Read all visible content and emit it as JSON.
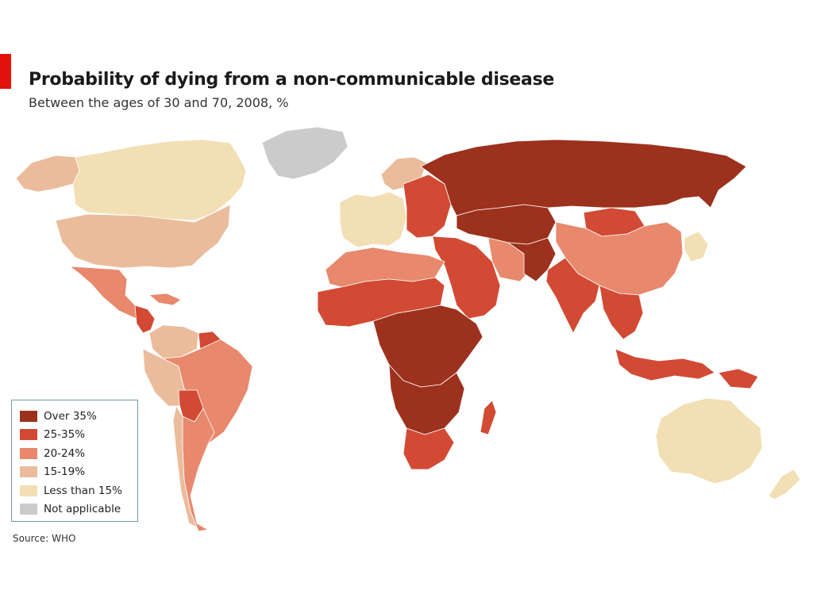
{
  "title": "Probability of dying from a non-communicable disease",
  "subtitle": "Between the ages of 30 and 70, 2008, %",
  "source": "Source: WHO",
  "accent_color": "#e3120b",
  "legend": [
    {
      "label": "Over 35%",
      "color": "#9c311d"
    },
    {
      "label": "25-35%",
      "color": "#d24a34"
    },
    {
      "label": "20-24%",
      "color": "#e8886c"
    },
    {
      "label": "15-19%",
      "color": "#ebbc9c"
    },
    {
      "label": "Less than 15%",
      "color": "#f2dfb4"
    },
    {
      "label": "Not applicable",
      "color": "#cbcbcb"
    }
  ],
  "regions": [
    {
      "name": "Canada",
      "category": "Less than 15%"
    },
    {
      "name": "Alaska",
      "category": "15-19%"
    },
    {
      "name": "Greenland",
      "category": "Not applicable"
    },
    {
      "name": "United States",
      "category": "15-19%"
    },
    {
      "name": "Mexico",
      "category": "20-24%"
    },
    {
      "name": "Central America",
      "category": "25-35%"
    },
    {
      "name": "Caribbean",
      "category": "20-24%"
    },
    {
      "name": "Colombia & Venezuela",
      "category": "15-19%"
    },
    {
      "name": "Guianas",
      "category": "25-35%"
    },
    {
      "name": "Brazil",
      "category": "20-24%"
    },
    {
      "name": "Peru & Ecuador",
      "category": "15-19%"
    },
    {
      "name": "Bolivia",
      "category": "25-35%"
    },
    {
      "name": "Southern Cone",
      "category": "20-24%"
    },
    {
      "name": "Chile",
      "category": "15-19%"
    },
    {
      "name": "Western Europe",
      "category": "Less than 15%"
    },
    {
      "name": "Nordic countries",
      "category": "15-19%"
    },
    {
      "name": "Eastern Europe",
      "category": "25-35%"
    },
    {
      "name": "Russia",
      "category": "Over 35%"
    },
    {
      "name": "Central Asia",
      "category": "Over 35%"
    },
    {
      "name": "Mongolia",
      "category": "25-35%"
    },
    {
      "name": "China",
      "category": "20-24%"
    },
    {
      "name": "Japan & Korea",
      "category": "Less than 15%"
    },
    {
      "name": "South Asia",
      "category": "25-35%"
    },
    {
      "name": "Afghanistan & Pakistan",
      "category": "Over 35%"
    },
    {
      "name": "Middle East",
      "category": "25-35%"
    },
    {
      "name": "Iran",
      "category": "20-24%"
    },
    {
      "name": "Southeast Asia",
      "category": "25-35%"
    },
    {
      "name": "Indonesia",
      "category": "25-35%"
    },
    {
      "name": "Papua New Guinea",
      "category": "25-35%"
    },
    {
      "name": "North Africa",
      "category": "20-24%"
    },
    {
      "name": "Sahel & West Africa",
      "category": "25-35%"
    },
    {
      "name": "Central & East Africa",
      "category": "Over 35%"
    },
    {
      "name": "Southern Africa",
      "category": "Over 35%"
    },
    {
      "name": "South Africa",
      "category": "25-35%"
    },
    {
      "name": "Madagascar",
      "category": "25-35%"
    },
    {
      "name": "Australia",
      "category": "Less than 15%"
    },
    {
      "name": "New Zealand",
      "category": "Less than 15%"
    }
  ]
}
